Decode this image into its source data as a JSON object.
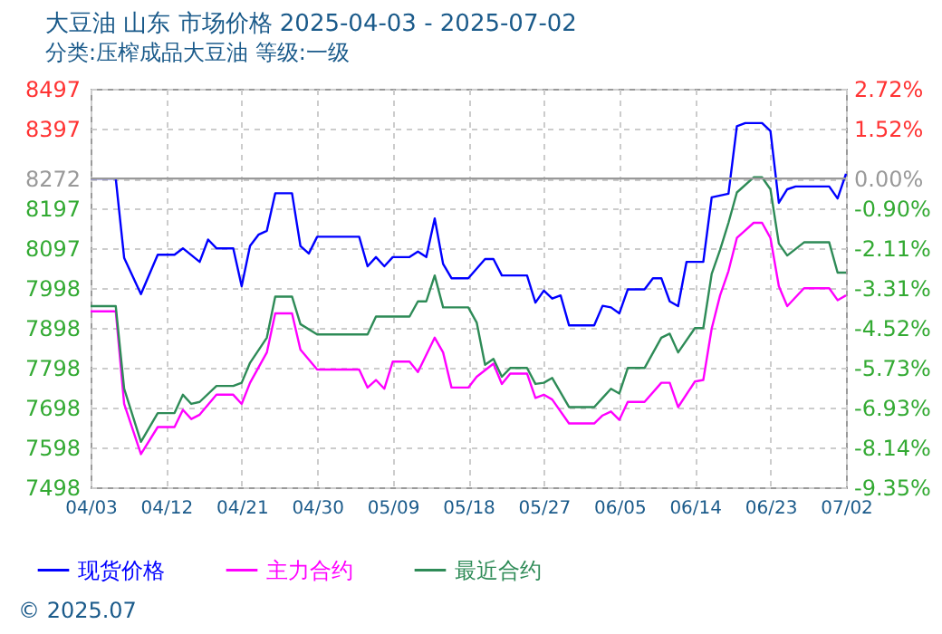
{
  "chart_data": {
    "type": "line",
    "title": "大豆油 山东 市场价格 2025-04-03 - 2025-07-02",
    "subtitle": "分类:压榨成品大豆油 等级:一级",
    "annotations": [
      "© 2025.07"
    ],
    "xlim": [
      "2025-04-03",
      "2025-07-02"
    ],
    "xticks": [
      {
        "value": "2025-04-03",
        "label": "04/03"
      },
      {
        "value": "2025-04-12",
        "label": "04/12"
      },
      {
        "value": "2025-04-21",
        "label": "04/21"
      },
      {
        "value": "2025-04-30",
        "label": "04/30"
      },
      {
        "value": "2025-05-09",
        "label": "05/09"
      },
      {
        "value": "2025-05-18",
        "label": "05/18"
      },
      {
        "value": "2025-05-27",
        "label": "05/27"
      },
      {
        "value": "2025-06-05",
        "label": "06/05"
      },
      {
        "value": "2025-06-14",
        "label": "06/14"
      },
      {
        "value": "2025-06-23",
        "label": "06/23"
      },
      {
        "value": "2025-07-02",
        "label": "07/02"
      }
    ],
    "ylim": [
      7498,
      8497
    ],
    "yticks": [
      7498,
      7598,
      7698,
      7798,
      7898,
      7998,
      8097,
      8197,
      8272,
      8397,
      8497
    ],
    "y2lim": [
      -9.35,
      2.72
    ],
    "y2ticks": [
      {
        "value": -9.35,
        "label": "-9.35%"
      },
      {
        "value": -8.14,
        "label": "-8.14%"
      },
      {
        "value": -6.93,
        "label": "-6.93%"
      },
      {
        "value": -5.73,
        "label": "-5.73%"
      },
      {
        "value": -4.52,
        "label": "-4.52%"
      },
      {
        "value": -3.31,
        "label": "-3.31%"
      },
      {
        "value": -2.11,
        "label": "-2.11%"
      },
      {
        "value": -0.9,
        "label": "-0.90%"
      },
      {
        "value": 0,
        "label": "0.00%"
      },
      {
        "value": 1.52,
        "label": "1.52%"
      },
      {
        "value": 2.72,
        "label": "2.72%"
      }
    ],
    "ref_lines": [
      {
        "axis": "y2",
        "value": 0,
        "color": "#999999"
      }
    ],
    "grid": true,
    "legend": "bottom",
    "series": [
      {
        "name": "现货价格",
        "color": "#0000ff",
        "x": [
          "2025-04-03",
          "2025-04-06",
          "2025-04-07",
          "2025-04-09",
          "2025-04-11",
          "2025-04-13",
          "2025-04-14",
          "2025-04-16",
          "2025-04-17",
          "2025-04-18",
          "2025-04-20",
          "2025-04-21",
          "2025-04-22",
          "2025-04-23",
          "2025-04-24",
          "2025-04-25",
          "2025-04-27",
          "2025-04-28",
          "2025-04-29",
          "2025-04-30",
          "2025-05-05",
          "2025-05-06",
          "2025-05-07",
          "2025-05-08",
          "2025-05-09",
          "2025-05-11",
          "2025-05-12",
          "2025-05-13",
          "2025-05-14",
          "2025-05-15",
          "2025-05-16",
          "2025-05-18",
          "2025-05-20",
          "2025-05-21",
          "2025-05-22",
          "2025-05-25",
          "2025-05-26",
          "2025-05-27",
          "2025-05-28",
          "2025-05-29",
          "2025-05-30",
          "2025-06-02",
          "2025-06-03",
          "2025-06-04",
          "2025-06-05",
          "2025-06-06",
          "2025-06-08",
          "2025-06-09",
          "2025-06-10",
          "2025-06-11",
          "2025-06-12",
          "2025-06-13",
          "2025-06-15",
          "2025-06-16",
          "2025-06-18",
          "2025-06-19",
          "2025-06-20",
          "2025-06-22",
          "2025-06-23",
          "2025-06-24",
          "2025-06-25",
          "2025-06-26",
          "2025-06-30",
          "2025-07-01",
          "2025-07-02"
        ],
        "values": [
          8272,
          8272,
          8073,
          7982,
          8081,
          8081,
          8097,
          8063,
          8119,
          8097,
          8097,
          8002,
          8103,
          8131,
          8141,
          8235,
          8235,
          8103,
          8084,
          8126,
          8126,
          8052,
          8075,
          8052,
          8075,
          8075,
          8089,
          8075,
          8172,
          8058,
          8022,
          8022,
          8070,
          8070,
          8029,
          8029,
          7961,
          7991,
          7971,
          7979,
          7904,
          7904,
          7953,
          7949,
          7934,
          7994,
          7994,
          8022,
          8022,
          7964,
          7952,
          8063,
          8063,
          8225,
          8234,
          8403,
          8411,
          8411,
          8391,
          8211,
          8245,
          8252,
          8252,
          8222,
          8284
        ]
      },
      {
        "name": "主力合约",
        "color": "#ff00ff",
        "x": [
          "2025-04-03",
          "2025-04-06",
          "2025-04-07",
          "2025-04-09",
          "2025-04-11",
          "2025-04-13",
          "2025-04-14",
          "2025-04-15",
          "2025-04-16",
          "2025-04-18",
          "2025-04-20",
          "2025-04-21",
          "2025-04-22",
          "2025-04-24",
          "2025-04-25",
          "2025-04-27",
          "2025-04-28",
          "2025-04-30",
          "2025-05-05",
          "2025-05-06",
          "2025-05-07",
          "2025-05-08",
          "2025-05-09",
          "2025-05-11",
          "2025-05-12",
          "2025-05-14",
          "2025-05-15",
          "2025-05-16",
          "2025-05-18",
          "2025-05-19",
          "2025-05-21",
          "2025-05-22",
          "2025-05-23",
          "2025-05-25",
          "2025-05-26",
          "2025-05-27",
          "2025-05-28",
          "2025-05-30",
          "2025-06-02",
          "2025-06-03",
          "2025-06-04",
          "2025-06-05",
          "2025-06-06",
          "2025-06-08",
          "2025-06-10",
          "2025-06-11",
          "2025-06-12",
          "2025-06-14",
          "2025-06-15",
          "2025-06-16",
          "2025-06-17",
          "2025-06-18",
          "2025-06-19",
          "2025-06-21",
          "2025-06-22",
          "2025-06-23",
          "2025-06-24",
          "2025-06-25",
          "2025-06-27",
          "2025-06-30",
          "2025-07-01",
          "2025-07-02"
        ],
        "values": [
          7939,
          7939,
          7707,
          7581,
          7649,
          7649,
          7692,
          7669,
          7680,
          7730,
          7730,
          7707,
          7760,
          7836,
          7934,
          7934,
          7843,
          7793,
          7793,
          7748,
          7767,
          7745,
          7813,
          7813,
          7787,
          7873,
          7836,
          7748,
          7748,
          7775,
          7808,
          7757,
          7783,
          7783,
          7722,
          7730,
          7718,
          7658,
          7658,
          7678,
          7688,
          7667,
          7712,
          7712,
          7760,
          7760,
          7699,
          7763,
          7767,
          7896,
          7979,
          8040,
          8123,
          8161,
          8161,
          8123,
          8002,
          7952,
          7997,
          7997,
          7967,
          7979
        ]
      },
      {
        "name": "最近合约",
        "color": "#2e8b57",
        "x": [
          "2025-04-03",
          "2025-04-06",
          "2025-04-07",
          "2025-04-09",
          "2025-04-11",
          "2025-04-13",
          "2025-04-14",
          "2025-04-15",
          "2025-04-16",
          "2025-04-18",
          "2025-04-20",
          "2025-04-21",
          "2025-04-22",
          "2025-04-24",
          "2025-04-25",
          "2025-04-27",
          "2025-04-28",
          "2025-04-30",
          "2025-05-06",
          "2025-05-07",
          "2025-05-11",
          "2025-05-12",
          "2025-05-13",
          "2025-05-14",
          "2025-05-15",
          "2025-05-18",
          "2025-05-19",
          "2025-05-20",
          "2025-05-21",
          "2025-05-22",
          "2025-05-23",
          "2025-05-25",
          "2025-05-26",
          "2025-05-27",
          "2025-05-28",
          "2025-05-30",
          "2025-06-02",
          "2025-06-03",
          "2025-06-04",
          "2025-06-05",
          "2025-06-06",
          "2025-06-08",
          "2025-06-10",
          "2025-06-11",
          "2025-06-12",
          "2025-06-14",
          "2025-06-15",
          "2025-06-16",
          "2025-06-17",
          "2025-06-18",
          "2025-06-19",
          "2025-06-21",
          "2025-06-22",
          "2025-06-23",
          "2025-06-24",
          "2025-06-25",
          "2025-06-27",
          "2025-06-30",
          "2025-07-01",
          "2025-07-02"
        ],
        "values": [
          7952,
          7952,
          7745,
          7612,
          7684,
          7684,
          7730,
          7707,
          7712,
          7752,
          7752,
          7760,
          7810,
          7873,
          7976,
          7976,
          7907,
          7881,
          7881,
          7926,
          7926,
          7964,
          7964,
          8029,
          7949,
          7949,
          7911,
          7805,
          7820,
          7775,
          7797,
          7797,
          7757,
          7760,
          7772,
          7699,
          7699,
          7722,
          7745,
          7733,
          7797,
          7797,
          7873,
          7883,
          7836,
          7897,
          7897,
          8033,
          8093,
          8161,
          8237,
          8275,
          8275,
          8245,
          8109,
          8079,
          8112,
          8112,
          8036,
          8036
        ]
      }
    ]
  }
}
